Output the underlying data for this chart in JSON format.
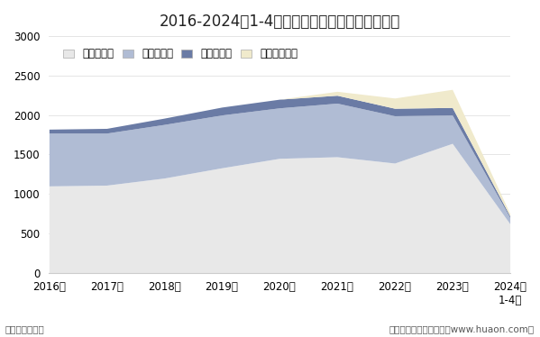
{
  "title": "2016-2024年1-4月贵州省各发电类型发电量统计",
  "years": [
    "2016年",
    "2017年",
    "2018年",
    "2019年",
    "2020年",
    "2021年",
    "2022年",
    "2023年",
    "2024年\n1-4月"
  ],
  "x_values": [
    0,
    1,
    2,
    3,
    4,
    5,
    6,
    7,
    8
  ],
  "huoli": [
    1100,
    1110,
    1200,
    1330,
    1450,
    1470,
    1390,
    1640,
    620
  ],
  "shuili": [
    670,
    660,
    680,
    670,
    640,
    680,
    600,
    360,
    80
  ],
  "fengli": [
    50,
    60,
    80,
    100,
    110,
    100,
    95,
    95,
    20
  ],
  "taiyang": [
    0,
    0,
    0,
    0,
    0,
    50,
    130,
    230,
    30
  ],
  "colors": {
    "huoli": "#e8e8e8",
    "shuili": "#b0bcd4",
    "fengli": "#6a7ba5",
    "taiyang": "#f0eacc"
  },
  "legend_labels": [
    "火力发电量",
    "水力发电量",
    "风力发电量",
    "太阳能发电量"
  ],
  "ylim": [
    0,
    3000
  ],
  "yticks": [
    0,
    500,
    1000,
    1500,
    2000,
    2500,
    3000
  ],
  "unit_label": "单位：亿千瓦时",
  "credit_label": "制图：华经产业研究院（www.huaon.com）",
  "background_color": "#ffffff"
}
